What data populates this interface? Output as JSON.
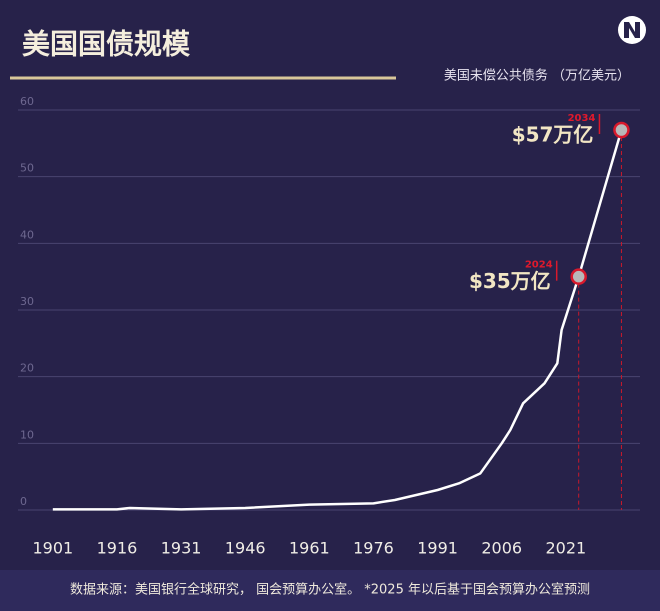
{
  "chart_data": {
    "type": "line",
    "title": "美国国债规模",
    "subtitle": "美国未偿公共债务 （万亿美元）",
    "source": "数据来源：美国银行全球研究， 国会预算办公室。 *2025 年以后基于国会预算办公室预测",
    "x": [
      1901,
      1916,
      1919,
      1931,
      1946,
      1961,
      1976,
      1981,
      1991,
      1996,
      2001,
      2006,
      2008,
      2011,
      2016,
      2019,
      2020,
      2021,
      2024,
      2029,
      2034
    ],
    "values": [
      0.1,
      0.1,
      0.3,
      0.1,
      0.3,
      0.8,
      1.0,
      1.5,
      3,
      4,
      5.5,
      10,
      12,
      16,
      19,
      22,
      27,
      29,
      35,
      46,
      57
    ],
    "color": "#ffffff",
    "xlim": [
      1898,
      2036
    ],
    "xticks": [
      1901,
      1916,
      1931,
      1946,
      1961,
      1976,
      1991,
      2006,
      2021
    ],
    "ylim": [
      0,
      60
    ],
    "yticks": [
      0,
      10,
      20,
      30,
      40,
      50,
      60
    ],
    "grid": true,
    "annotations": [
      {
        "x": 2024,
        "y": 35,
        "value_label": "$35万亿"
      },
      {
        "x": 2034,
        "y": 57,
        "value_label": "$57万亿"
      }
    ]
  }
}
